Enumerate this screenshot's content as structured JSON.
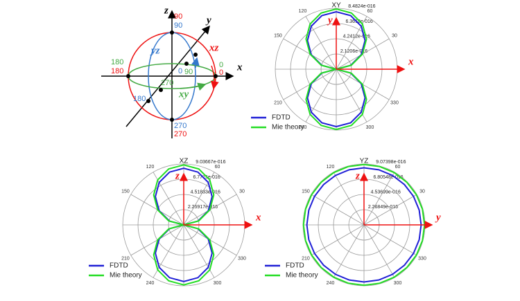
{
  "diagram": {
    "axis_labels": [
      "z",
      "y",
      "x"
    ],
    "plane_labels": [
      "xz",
      "yz",
      "xy"
    ],
    "angle_labels": [
      "90",
      "90",
      "0",
      "0",
      "0",
      "180",
      "180",
      "90",
      "270",
      "180",
      "270",
      "270"
    ]
  },
  "chart_data": [
    {
      "type": "polar",
      "title": "XY",
      "x_label": "x",
      "y_label": "y",
      "theta": [
        0,
        15,
        30,
        45,
        60,
        75,
        90,
        105,
        120,
        135,
        150,
        165,
        180,
        195,
        210,
        225,
        240,
        255,
        270,
        285,
        300,
        315,
        330,
        345
      ],
      "thetaticks": [
        30,
        60,
        120,
        150,
        210,
        240,
        300,
        330
      ],
      "rlim": [
        0,
        8.4824e-16
      ],
      "rticks": [
        {
          "value": 2.1206e-16,
          "label": "2.1206e-016"
        },
        {
          "value": 4.2412e-16,
          "label": "4.2412e-016"
        },
        {
          "value": 6.3618e-16,
          "label": "6.3618e-016"
        },
        {
          "value": 8.4824e-16,
          "label": "8.4824e-016"
        }
      ],
      "series": [
        {
          "name": "FDTD",
          "color": "#1f1fd6",
          "values": [
            0,
            2.07e-16,
            4e-16,
            5.66e-16,
            6.93e-16,
            7.73e-16,
            8e-16,
            7.73e-16,
            6.93e-16,
            5.66e-16,
            4e-16,
            2.07e-16,
            0,
            2.07e-16,
            4e-16,
            5.66e-16,
            6.93e-16,
            7.73e-16,
            8e-16,
            7.73e-16,
            6.93e-16,
            5.66e-16,
            4e-16,
            2.07e-16
          ]
        },
        {
          "name": "Mie theory",
          "color": "#22dd22",
          "values": [
            0,
            2.17e-16,
            4.2e-16,
            5.94e-16,
            7.27e-16,
            8.11e-16,
            8.4e-16,
            8.11e-16,
            7.27e-16,
            5.94e-16,
            4.2e-16,
            2.17e-16,
            0,
            2.17e-16,
            4.2e-16,
            5.94e-16,
            7.27e-16,
            8.11e-16,
            8.4e-16,
            8.11e-16,
            7.27e-16,
            5.94e-16,
            4.2e-16,
            2.17e-16
          ]
        }
      ]
    },
    {
      "type": "polar",
      "title": "XZ",
      "x_label": "x",
      "y_label": "z",
      "theta": [
        0,
        15,
        30,
        45,
        60,
        75,
        90,
        105,
        120,
        135,
        150,
        165,
        180,
        195,
        210,
        225,
        240,
        255,
        270,
        285,
        300,
        315,
        330,
        345
      ],
      "thetaticks": [
        30,
        60,
        120,
        150,
        210,
        240,
        300,
        330
      ],
      "rlim": [
        0,
        9.03667e-16
      ],
      "rticks": [
        {
          "value": 2.25917e-16,
          "label": "2.25917e-016"
        },
        {
          "value": 4.51833e-16,
          "label": "4.51833e-016"
        },
        {
          "value": 6.7775e-16,
          "label": "6.7775e-016"
        },
        {
          "value": 9.03667e-16,
          "label": "9.03667e-016"
        }
      ],
      "series": [
        {
          "name": "FDTD",
          "color": "#1f1fd6",
          "values": [
            0,
            2.17e-16,
            4.2e-16,
            5.94e-16,
            7.27e-16,
            8.11e-16,
            8.4e-16,
            8.11e-16,
            7.27e-16,
            5.94e-16,
            4.2e-16,
            2.17e-16,
            0,
            2.17e-16,
            4.2e-16,
            5.94e-16,
            7.27e-16,
            8.11e-16,
            8.4e-16,
            8.11e-16,
            7.27e-16,
            5.94e-16,
            4.2e-16,
            2.17e-16
          ]
        },
        {
          "name": "Mie theory",
          "color": "#22dd22",
          "values": [
            0,
            2.3e-16,
            4.45e-16,
            6.29e-16,
            7.71e-16,
            8.6e-16,
            8.9e-16,
            8.6e-16,
            7.71e-16,
            6.29e-16,
            4.45e-16,
            2.3e-16,
            0,
            2.3e-16,
            4.45e-16,
            6.29e-16,
            7.71e-16,
            8.6e-16,
            8.9e-16,
            8.6e-16,
            7.71e-16,
            6.29e-16,
            4.45e-16,
            2.3e-16
          ]
        }
      ]
    },
    {
      "type": "polar",
      "title": "YZ",
      "x_label": "y",
      "y_label": "z",
      "theta": [
        0,
        15,
        30,
        45,
        60,
        75,
        90,
        105,
        120,
        135,
        150,
        165,
        180,
        195,
        210,
        225,
        240,
        255,
        270,
        285,
        300,
        315,
        330,
        345
      ],
      "thetaticks": [
        30,
        60,
        120,
        150,
        210,
        240,
        300,
        330
      ],
      "rlim": [
        0,
        9.07398e-16
      ],
      "rticks": [
        {
          "value": 2.26849e-16,
          "label": "2.26849e-016"
        },
        {
          "value": 4.53699e-16,
          "label": "4.53699e-016"
        },
        {
          "value": 6.80548e-16,
          "label": "6.80548e-016"
        },
        {
          "value": 9.07398e-16,
          "label": "9.07398e-016"
        }
      ],
      "series": [
        {
          "name": "FDTD",
          "color": "#1f1fd6",
          "values": [
            8.5e-16,
            8.5e-16,
            8.5e-16,
            8.5e-16,
            8.5e-16,
            8.5e-16,
            8.5e-16,
            8.5e-16,
            8.5e-16,
            8.5e-16,
            8.5e-16,
            8.5e-16,
            8.5e-16,
            8.5e-16,
            8.5e-16,
            8.5e-16,
            8.5e-16,
            8.5e-16,
            8.5e-16,
            8.5e-16,
            8.5e-16,
            8.5e-16,
            8.5e-16,
            8.5e-16
          ]
        },
        {
          "name": "Mie theory",
          "color": "#22dd22",
          "values": [
            9e-16,
            9e-16,
            9e-16,
            9e-16,
            9e-16,
            9e-16,
            9e-16,
            9e-16,
            9e-16,
            9e-16,
            9e-16,
            9e-16,
            9e-16,
            9e-16,
            9e-16,
            9e-16,
            9e-16,
            9e-16,
            9e-16,
            9e-16,
            9e-16,
            9e-16,
            9e-16,
            9e-16
          ]
        }
      ]
    }
  ]
}
